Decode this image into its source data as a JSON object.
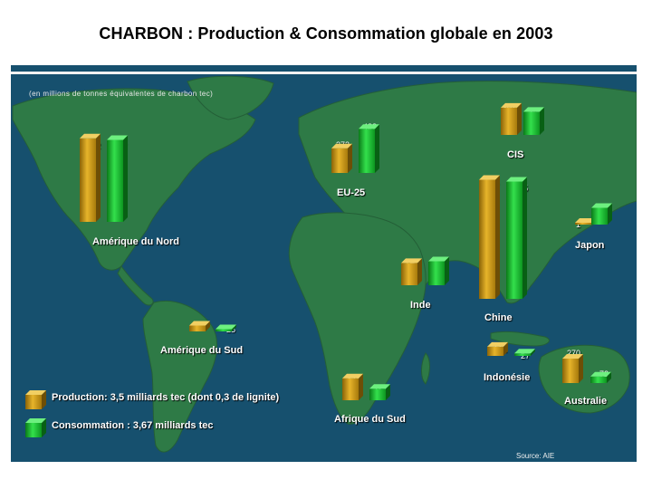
{
  "title": "CHARBON : Production & Consommation globale en 2003",
  "unit_note": "(en millions de tonnes équivalentes de charbon tec)",
  "source": "Source: AIE",
  "legend": {
    "production": "Production:  3,5 milliards tec (dont 0,3 de lignite)",
    "consumption": "Consommation :   3,67 milliards tec"
  },
  "colors": {
    "production": "#c8960f",
    "consumption": "#10b826",
    "ocean": "#16506e",
    "land": "#2e7a46"
  },
  "chart_data": {
    "type": "bar",
    "title": "CHARBON : Production & Consommation globale en 2003",
    "unit": "(en millions de tonnes équivalentes de charbon tec)",
    "series": [
      {
        "name": "Production",
        "values": [
          922,
          273,
          301,
          1315,
          1,
          246,
          65,
          101,
          270,
          243
        ]
      },
      {
        "name": "Consommation",
        "values": [
          905,
          488,
          256,
          1295,
          185,
          265,
          25,
          27,
          72,
          127
        ]
      }
    ],
    "categories": [
      "Amérique du Nord",
      "EU-25",
      "CIS",
      "Chine",
      "Japon",
      "Inde",
      "Amérique du Sud",
      "Indonésie",
      "Australie",
      "Afrique du Sud"
    ],
    "regions": [
      {
        "id": "na",
        "name": "Amérique du Nord",
        "production": 922,
        "consumption": 905
      },
      {
        "id": "eu",
        "name": "EU-25",
        "production": 273,
        "consumption": 488
      },
      {
        "id": "cis",
        "name": "CIS",
        "production": 301,
        "consumption": 256
      },
      {
        "id": "cn",
        "name": "Chine",
        "production": 1315,
        "consumption": 1295
      },
      {
        "id": "jp",
        "name": "Japon",
        "production": 1,
        "consumption": 185
      },
      {
        "id": "in",
        "name": "Inde",
        "production": 246,
        "consumption": 265
      },
      {
        "id": "sa",
        "name": "Amérique du Sud",
        "production": 65,
        "consumption": 25
      },
      {
        "id": "id",
        "name": "Indonésie",
        "production": 101,
        "consumption": 27
      },
      {
        "id": "au",
        "name": "Australie",
        "production": 270,
        "consumption": 72
      },
      {
        "id": "za",
        "name": "Afrique du Sud",
        "production": 243,
        "consumption": 127
      }
    ]
  }
}
